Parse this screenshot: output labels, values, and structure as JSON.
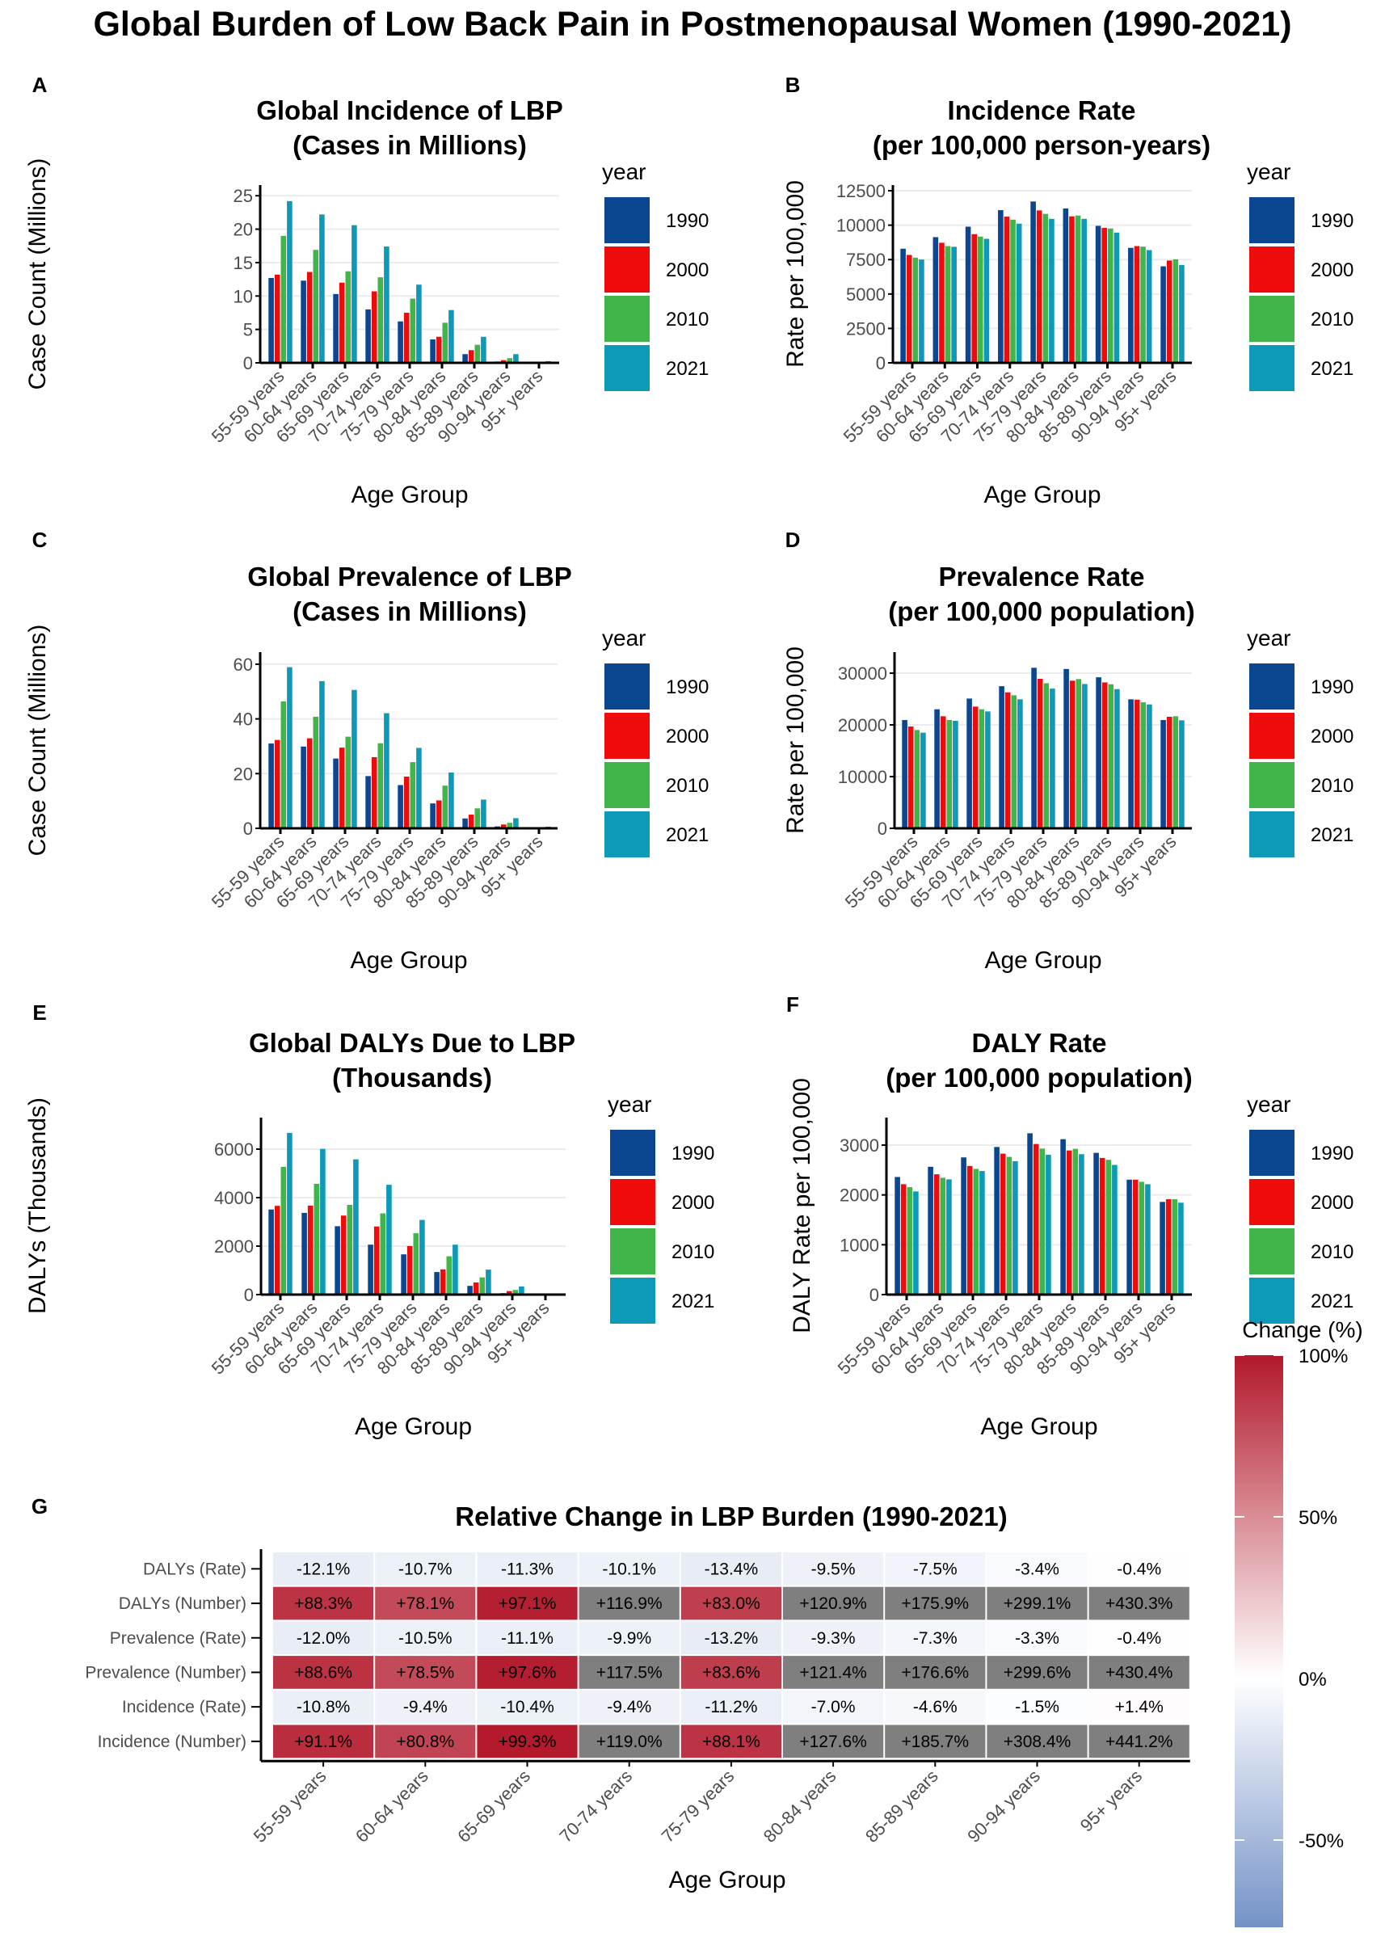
{
  "title": "Global Burden of Low Back Pain in Postmenopausal Women (1990-2021)",
  "colors": {
    "1990": "#0b4690",
    "2000": "#ef0b0b",
    "2010": "#3fb54a",
    "2021": "#0d9ab9",
    "na": "#7f7f7f",
    "pos": "#b2182b",
    "neg": "#4a71b6"
  },
  "chart_data": [
    {
      "panel_label": "A",
      "type": "bar",
      "title": [
        "Global Incidence of LBP",
        "(Cases in Millions)"
      ],
      "xlabel": "Age Group",
      "ylabel": "Case Count (Millions)",
      "legend_title": "year",
      "legend_position": "right",
      "categories": [
        "55-59 years",
        "60-64 years",
        "65-69 years",
        "70-74 years",
        "75-79 years",
        "80-84 years",
        "85-89 years",
        "90-94 years",
        "95+ years"
      ],
      "ylim": [
        0,
        26.6
      ],
      "yticks": [
        0,
        5,
        10,
        15,
        20,
        25
      ],
      "ytick_labels": [
        "0",
        "5",
        "10",
        "15",
        "20",
        "25"
      ],
      "series": [
        {
          "name": "1990",
          "values": [
            12.7,
            12.3,
            10.3,
            8.0,
            6.2,
            3.5,
            1.3,
            0.2,
            0.05
          ]
        },
        {
          "name": "2000",
          "values": [
            13.2,
            13.6,
            12.0,
            10.7,
            7.5,
            3.9,
            1.9,
            0.4,
            0.08
          ]
        },
        {
          "name": "2010",
          "values": [
            19.0,
            16.9,
            13.7,
            12.8,
            9.6,
            6.0,
            2.7,
            0.7,
            0.12
          ]
        },
        {
          "name": "2021",
          "values": [
            24.2,
            22.2,
            20.6,
            17.4,
            11.7,
            7.9,
            3.9,
            1.3,
            0.25
          ]
        }
      ]
    },
    {
      "panel_label": "B",
      "type": "bar",
      "title": [
        "Incidence Rate",
        "(per 100,000 person-years)"
      ],
      "xlabel": "Age Group",
      "ylabel": "Rate per 100,000",
      "legend_title": "year",
      "legend_position": "right",
      "categories": [
        "55-59 years",
        "60-64 years",
        "65-69 years",
        "70-74 years",
        "75-79 years",
        "80-84 years",
        "85-89 years",
        "90-94 years",
        "95+ years"
      ],
      "ylim": [
        0,
        12913
      ],
      "yticks": [
        0,
        2500,
        5000,
        7500,
        10000,
        12500
      ],
      "ytick_labels": [
        "0",
        "2500",
        "5000",
        "7500",
        "10000",
        "12500"
      ],
      "series": [
        {
          "name": "1990",
          "values": [
            8290,
            9130,
            9890,
            11090,
            11720,
            11210,
            9950,
            8350,
            7010
          ]
        },
        {
          "name": "2000",
          "values": [
            7840,
            8720,
            9350,
            10620,
            11070,
            10640,
            9800,
            8480,
            7430
          ]
        },
        {
          "name": "2010",
          "values": [
            7640,
            8480,
            9170,
            10400,
            10820,
            10700,
            9760,
            8440,
            7520
          ]
        },
        {
          "name": "2021",
          "values": [
            7500,
            8430,
            9010,
            10110,
            10460,
            10460,
            9460,
            8190,
            7110
          ]
        }
      ]
    },
    {
      "panel_label": "C",
      "type": "bar",
      "title": [
        "Global Prevalence of LBP",
        "(Cases in Millions)"
      ],
      "xlabel": "Age Group",
      "ylabel": "Case Count (Millions)",
      "legend_title": "year",
      "legend_position": "right",
      "categories": [
        "55-59 years",
        "60-64 years",
        "65-69 years",
        "70-74 years",
        "75-79 years",
        "80-84 years",
        "85-89 years",
        "90-94 years",
        "95+ years"
      ],
      "ylim": [
        0,
        64.4
      ],
      "yticks": [
        0,
        20,
        40,
        60
      ],
      "ytick_labels": [
        "0",
        "20",
        "40",
        "60"
      ],
      "series": [
        {
          "name": "1990",
          "values": [
            31.0,
            29.9,
            25.5,
            19.1,
            15.8,
            9.1,
            3.6,
            0.7,
            0.1
          ]
        },
        {
          "name": "2000",
          "values": [
            32.3,
            32.9,
            29.5,
            26.0,
            18.9,
            10.2,
            5.0,
            1.4,
            0.15
          ]
        },
        {
          "name": "2010",
          "values": [
            46.4,
            40.8,
            33.5,
            31.1,
            24.2,
            15.6,
            7.3,
            2.0,
            0.3
          ]
        },
        {
          "name": "2021",
          "values": [
            58.9,
            53.8,
            50.6,
            42.1,
            29.4,
            20.4,
            10.5,
            3.7,
            0.6
          ]
        }
      ]
    },
    {
      "panel_label": "D",
      "type": "bar",
      "title": [
        "Prevalence Rate",
        "(per 100,000 population)"
      ],
      "xlabel": "Age Group",
      "ylabel": "Rate per 100,000",
      "legend_title": "year",
      "legend_position": "right",
      "categories": [
        "55-59 years",
        "60-64 years",
        "65-69 years",
        "70-74 years",
        "75-79 years",
        "80-84 years",
        "85-89 years",
        "90-94 years",
        "95+ years"
      ],
      "ylim": [
        0,
        34060
      ],
      "yticks": [
        0,
        10000,
        20000,
        30000
      ],
      "ytick_labels": [
        "0",
        "10000",
        "20000",
        "30000"
      ],
      "series": [
        {
          "name": "1990",
          "values": [
            20940,
            23010,
            25090,
            27480,
            31040,
            30810,
            29200,
            24940,
            20940
          ]
        },
        {
          "name": "2000",
          "values": [
            19690,
            21660,
            23530,
            26290,
            28900,
            28540,
            28210,
            24880,
            21560
          ]
        },
        {
          "name": "2010",
          "values": [
            19010,
            20940,
            23010,
            25710,
            28050,
            28850,
            27840,
            24360,
            21660
          ]
        },
        {
          "name": "2021",
          "values": [
            18490,
            20780,
            22600,
            24940,
            27010,
            27900,
            26910,
            23950,
            20880
          ]
        }
      ]
    },
    {
      "panel_label": "E",
      "type": "bar",
      "title": [
        "Global DALYs Due to LBP",
        "(Thousands)"
      ],
      "xlabel": "Age Group",
      "ylabel": "DALYs (Thousands)",
      "legend_title": "year",
      "legend_position": "right",
      "categories": [
        "55-59 years",
        "60-64 years",
        "65-69 years",
        "70-74 years",
        "75-79 years",
        "80-84 years",
        "85-89 years",
        "90-94 years",
        "95+ years"
      ],
      "ylim": [
        0,
        7300
      ],
      "yticks": [
        0,
        2000,
        4000,
        6000
      ],
      "ytick_labels": [
        "0",
        "2000",
        "4000",
        "6000"
      ],
      "series": [
        {
          "name": "1990",
          "values": [
            3510,
            3370,
            2820,
            2060,
            1660,
            930,
            360,
            60,
            10
          ]
        },
        {
          "name": "2000",
          "values": [
            3660,
            3670,
            3260,
            2810,
            2000,
            1040,
            500,
            145,
            15
          ]
        },
        {
          "name": "2010",
          "values": [
            5270,
            4570,
            3700,
            3350,
            2530,
            1580,
            710,
            190,
            25
          ]
        },
        {
          "name": "2021",
          "values": [
            6670,
            6010,
            5580,
            4530,
            3080,
            2060,
            1030,
            335,
            50
          ]
        }
      ]
    },
    {
      "panel_label": "F",
      "type": "bar",
      "title": [
        "DALY Rate",
        "(per 100,000 population)"
      ],
      "xlabel": "Age Group",
      "ylabel": "DALY Rate per 100,000",
      "legend_title": "year",
      "legend_position": "right",
      "categories": [
        "55-59 years",
        "60-64 years",
        "65-69 years",
        "70-74 years",
        "75-79 years",
        "80-84 years",
        "85-89 years",
        "90-94 years",
        "95+ years"
      ],
      "ylim": [
        0,
        3551
      ],
      "yticks": [
        0,
        1000,
        2000,
        3000
      ],
      "ytick_labels": [
        "0",
        "1000",
        "2000",
        "3000"
      ],
      "series": [
        {
          "name": "1990",
          "values": [
            2360,
            2565,
            2753,
            2962,
            3237,
            3118,
            2844,
            2306,
            1860
          ]
        },
        {
          "name": "2000",
          "values": [
            2215,
            2414,
            2581,
            2828,
            3022,
            2892,
            2742,
            2306,
            1914
          ]
        },
        {
          "name": "2010",
          "values": [
            2156,
            2344,
            2522,
            2763,
            2930,
            2925,
            2704,
            2263,
            1914
          ]
        },
        {
          "name": "2021",
          "values": [
            2070,
            2312,
            2479,
            2677,
            2806,
            2817,
            2602,
            2215,
            1844
          ]
        }
      ]
    },
    {
      "panel_label": "G",
      "type": "heatmap",
      "title": "Relative Change in LBP Burden (1990-2021)",
      "xlabel": "Age Group",
      "columns": [
        "55-59 years",
        "60-64 years",
        "65-69 years",
        "70-74 years",
        "75-79 years",
        "80-84 years",
        "85-89 years",
        "90-94 years",
        "95+ years"
      ],
      "rows": [
        "DALYs (Rate)",
        "DALYs (Number)",
        "Prevalence (Rate)",
        "Prevalence (Number)",
        "Incidence (Rate)",
        "Incidence (Number)"
      ],
      "cell_labels": [
        [
          "-12.1%",
          "-10.7%",
          "-11.3%",
          "-10.1%",
          "-13.4%",
          "-9.5%",
          "-7.5%",
          "-3.4%",
          "-0.4%"
        ],
        [
          "+88.3%",
          "+78.1%",
          "+97.1%",
          "+116.9%",
          "+83.0%",
          "+120.9%",
          "+175.9%",
          "+299.1%",
          "+430.3%"
        ],
        [
          "-12.0%",
          "-10.5%",
          "-11.1%",
          "-9.9%",
          "-13.2%",
          "-9.3%",
          "-7.3%",
          "-3.3%",
          "-0.4%"
        ],
        [
          "+88.6%",
          "+78.5%",
          "+97.6%",
          "+117.5%",
          "+83.6%",
          "+121.4%",
          "+176.6%",
          "+299.6%",
          "+430.4%"
        ],
        [
          "-10.8%",
          "-9.4%",
          "-10.4%",
          "-9.4%",
          "-11.2%",
          "-7.0%",
          "-4.6%",
          "-1.5%",
          "+1.4%"
        ],
        [
          "+91.1%",
          "+80.8%",
          "+99.3%",
          "+119.0%",
          "+88.1%",
          "+127.6%",
          "+185.7%",
          "+308.4%",
          "+441.2%"
        ]
      ],
      "values": [
        [
          -12.1,
          -10.7,
          -11.3,
          -10.1,
          -13.4,
          -9.5,
          -7.5,
          -3.4,
          -0.4
        ],
        [
          88.3,
          78.1,
          97.1,
          116.9,
          83.0,
          120.9,
          175.9,
          299.1,
          430.3
        ],
        [
          -12.0,
          -10.5,
          -11.1,
          -9.9,
          -13.2,
          -9.3,
          -7.3,
          -3.3,
          -0.4
        ],
        [
          88.6,
          78.5,
          97.6,
          117.5,
          83.6,
          121.4,
          176.6,
          299.6,
          430.4
        ],
        [
          -10.8,
          -9.4,
          -10.4,
          -9.4,
          -11.2,
          -7.0,
          -4.6,
          -1.5,
          1.4
        ],
        [
          91.1,
          80.8,
          99.3,
          119.0,
          88.1,
          127.6,
          185.7,
          308.4,
          441.2
        ]
      ],
      "colorbar": {
        "title": "Change (%)",
        "limits": [
          -77,
          100
        ],
        "ticks": [
          100,
          50,
          0,
          -50
        ],
        "tick_labels": [
          "100%",
          "50%",
          "0%",
          "-50%"
        ]
      }
    }
  ]
}
